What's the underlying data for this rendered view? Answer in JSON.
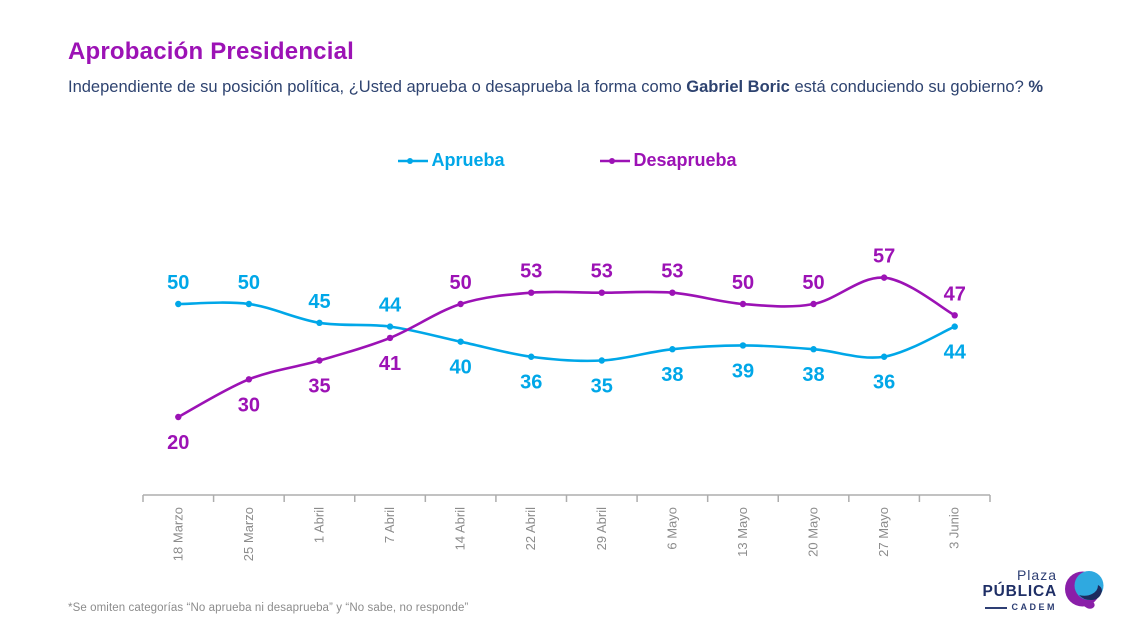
{
  "header": {
    "title": "Aprobación Presidencial",
    "subtitle_part1": "Independiente de su posición política, ¿Usted aprueba o desaprueba la forma como ",
    "subtitle_bold": "Gabriel Boric",
    "subtitle_part2": " está conduciendo su gobierno? ",
    "subtitle_pct": "%"
  },
  "theme": {
    "accent_purple": "#9C12B5",
    "accent_blue": "#00A7E8",
    "subtitle_navy": "#2E4370",
    "axis_gray": "#ADADAD",
    "label_gray": "#8C8C8C"
  },
  "chart_data": {
    "type": "line",
    "categories": [
      "18 Marzo",
      "25 Marzo",
      "1 Abril",
      "7 Abril",
      "14 Abril",
      "22 Abril",
      "29 Abril",
      "6 Mayo",
      "13 Mayo",
      "20 Mayo",
      "27 Mayo",
      "3 Junio"
    ],
    "series": [
      {
        "name": "Aprueba",
        "color": "#00A7E8",
        "values": [
          50,
          50,
          45,
          44,
          40,
          36,
          35,
          38,
          39,
          38,
          36,
          44
        ]
      },
      {
        "name": "Desaprueba",
        "color": "#9C12B5",
        "values": [
          20,
          30,
          35,
          41,
          50,
          53,
          53,
          53,
          50,
          50,
          57,
          47
        ]
      }
    ],
    "title": "Aprobación Presidencial",
    "xlabel": "",
    "ylabel": "",
    "unit": "%",
    "ylim": [
      15,
      62
    ],
    "x_tick_rotation": -90,
    "grid": false,
    "legend_position": "top-center",
    "data_labels": true
  },
  "footnote": "*Se omiten categorías “No aprueba ni desaprueba” y “No sabe, no responde”",
  "logo": {
    "line1": "Plaza",
    "line2": "PÚBLICA",
    "line3": "CADEM"
  }
}
